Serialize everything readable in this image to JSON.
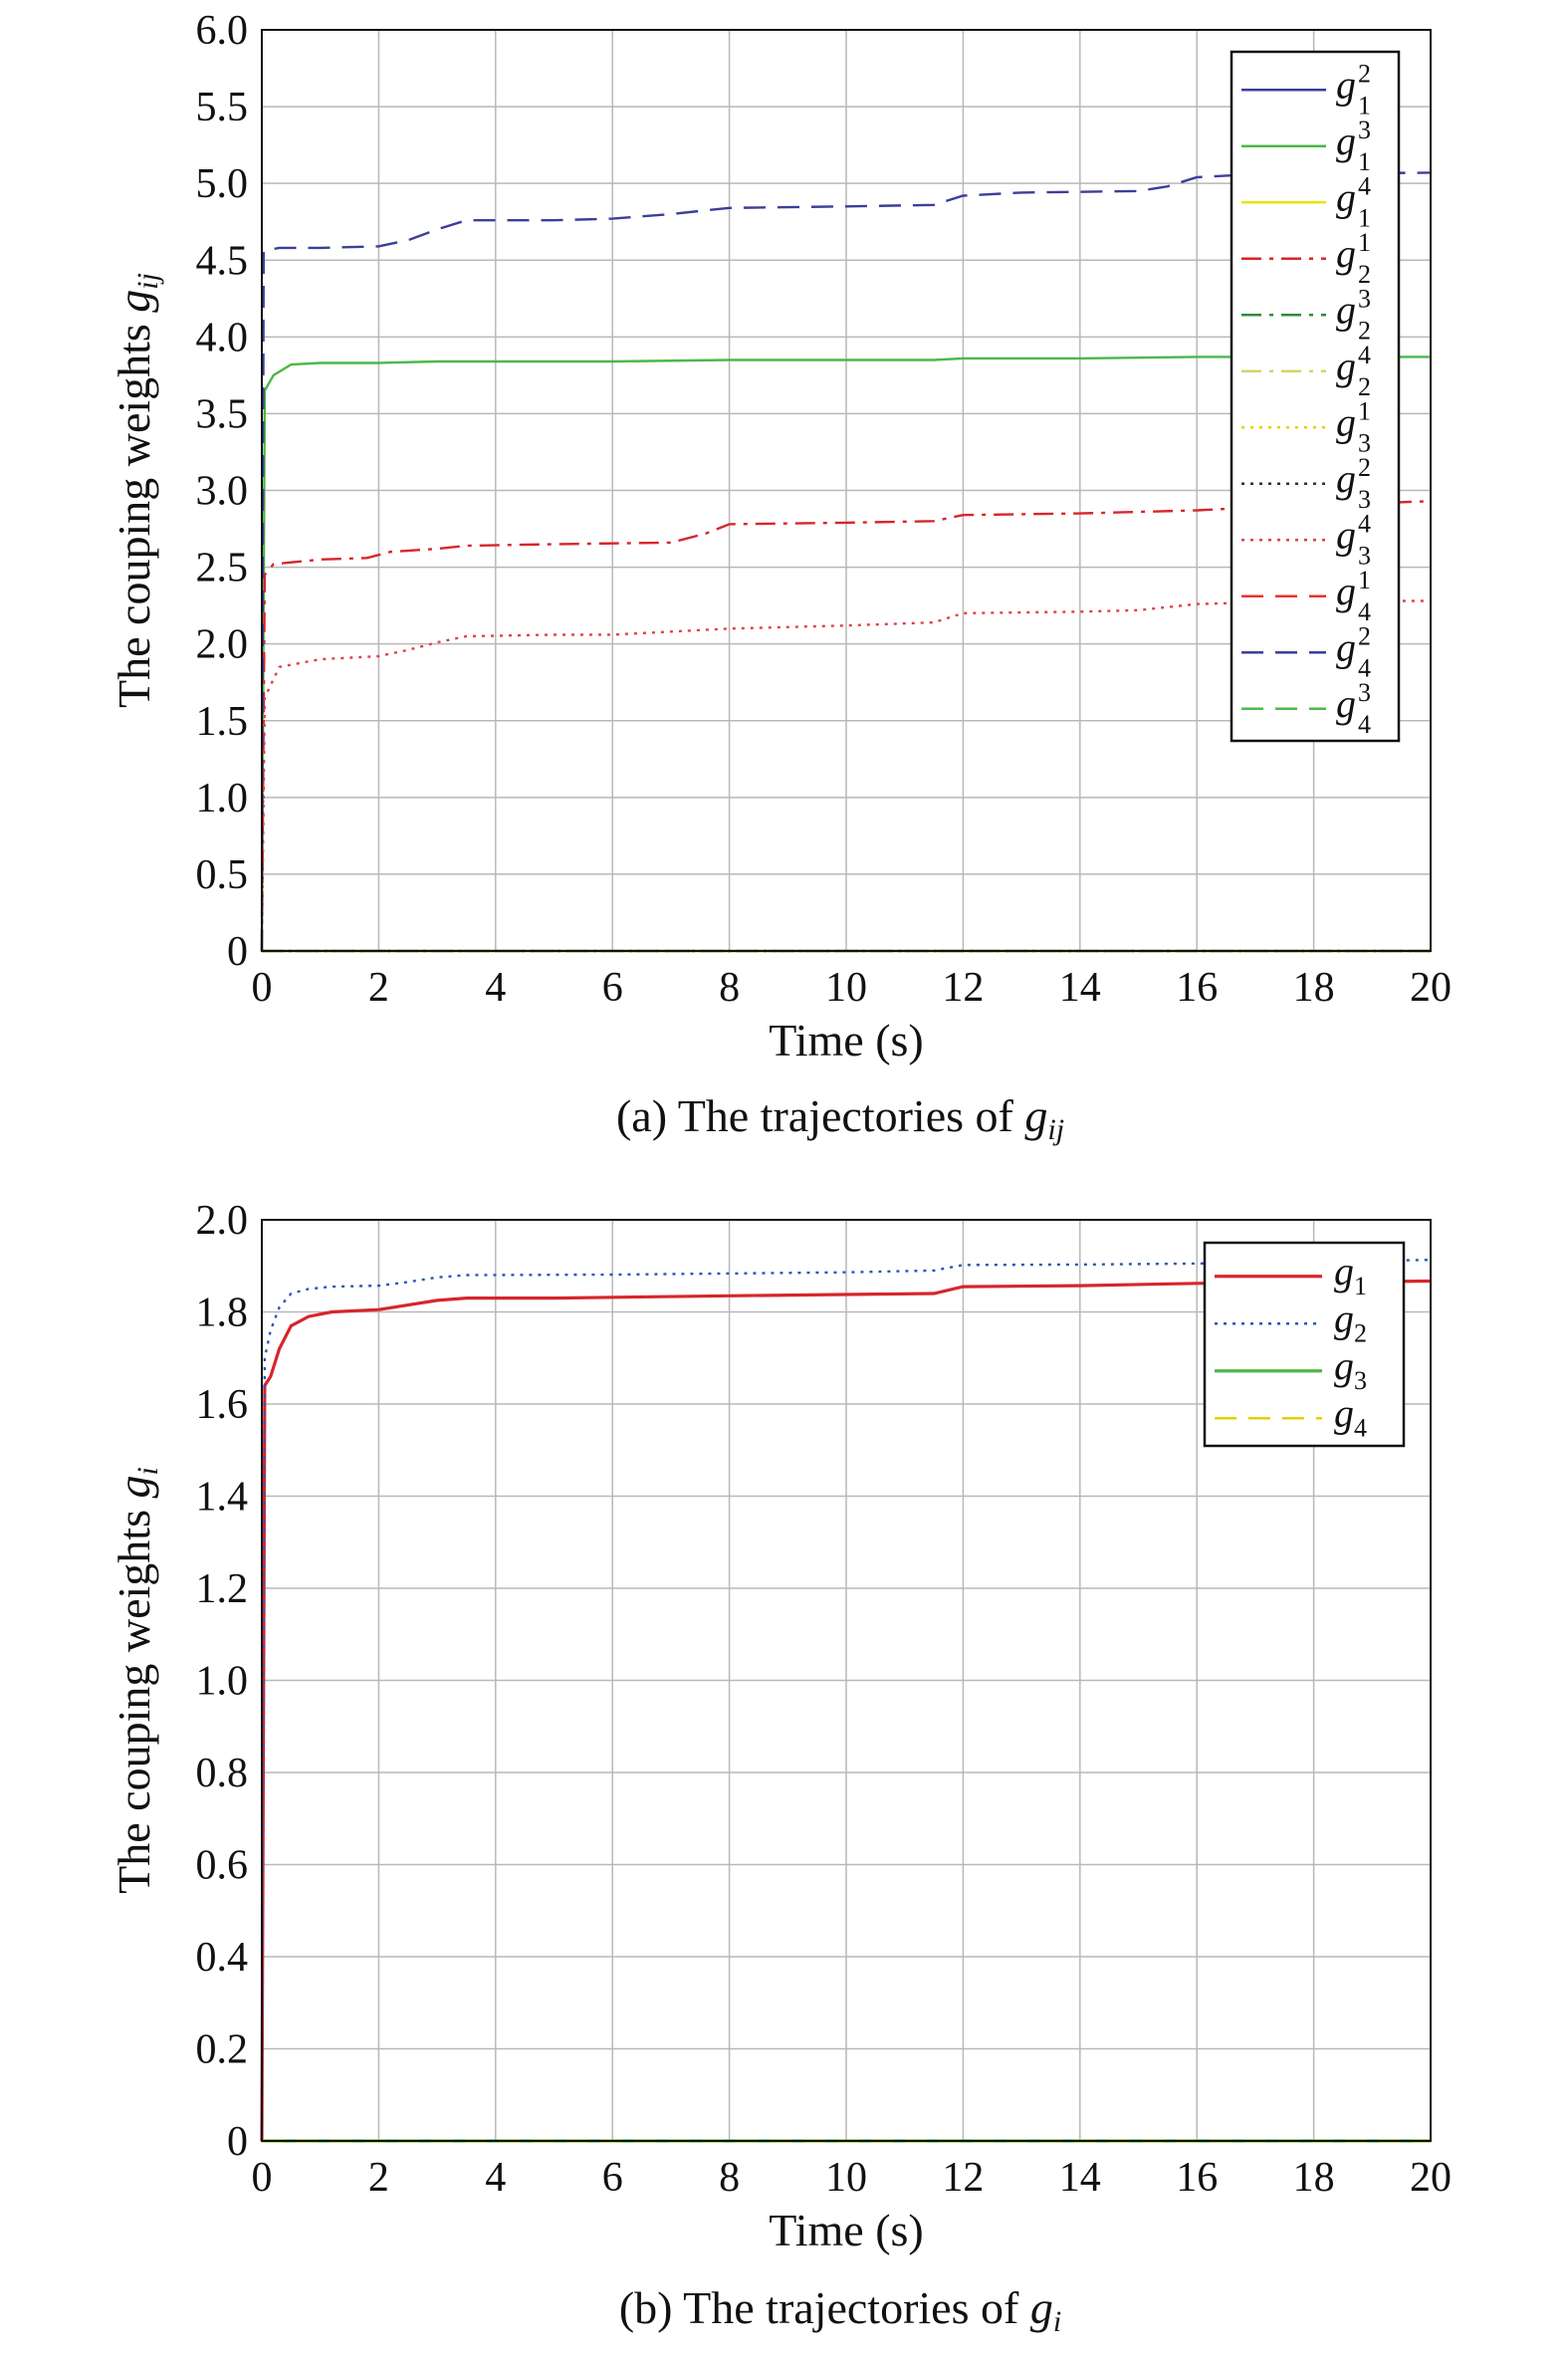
{
  "chart_data": [
    {
      "type": "line",
      "panel": "a",
      "caption_prefix": "(a) The trajectories of ",
      "caption_symbol": "g",
      "caption_subscript": "ij",
      "xlabel": "Time (s)",
      "ylabel_prefix": "The couping weights ",
      "ylabel_symbol": "g",
      "ylabel_subscript": "ij",
      "xlim": [
        0,
        20
      ],
      "ylim": [
        0,
        6
      ],
      "xticks": [
        "0",
        "2",
        "4",
        "6",
        "8",
        "10",
        "12",
        "14",
        "16",
        "18",
        "20"
      ],
      "yticks": [
        "0",
        "0.5",
        "1.0",
        "1.5",
        "2.0",
        "2.5",
        "3.0",
        "3.5",
        "4.0",
        "4.5",
        "5.0",
        "5.5",
        "6.0"
      ],
      "grid": true,
      "legend_position": "top-right",
      "series": [
        {
          "name": "g",
          "sub": "1",
          "sup": "2",
          "color": "#3b3f9a",
          "dash": "solid",
          "x": [
            0,
            20
          ],
          "y": [
            0,
            0
          ]
        },
        {
          "name": "g",
          "sub": "1",
          "sup": "3",
          "color": "#4cb848",
          "dash": "solid",
          "x": [
            0,
            0.05,
            0.2,
            0.5,
            1,
            2,
            3,
            4,
            6,
            8,
            10,
            11.5,
            12,
            14,
            16,
            20
          ],
          "y": [
            0,
            3.65,
            3.75,
            3.82,
            3.83,
            3.83,
            3.84,
            3.84,
            3.84,
            3.85,
            3.85,
            3.85,
            3.86,
            3.86,
            3.87,
            3.87
          ]
        },
        {
          "name": "g",
          "sub": "1",
          "sup": "4",
          "color": "#e6e600",
          "dash": "solid",
          "x": [
            0,
            20
          ],
          "y": [
            0,
            0
          ]
        },
        {
          "name": "g",
          "sub": "2",
          "sup": "1",
          "color": "#d7262b",
          "dash": "dashdot",
          "x": [
            0,
            0.05,
            0.2,
            1,
            1.8,
            2.2,
            3,
            3.5,
            5,
            7,
            7.6,
            8,
            10,
            11.5,
            12,
            14,
            16,
            17,
            20
          ],
          "y": [
            0,
            2.45,
            2.52,
            2.55,
            2.56,
            2.6,
            2.62,
            2.64,
            2.65,
            2.66,
            2.72,
            2.78,
            2.79,
            2.8,
            2.84,
            2.85,
            2.87,
            2.89,
            2.93
          ]
        },
        {
          "name": "g",
          "sub": "2",
          "sup": "3",
          "color": "#2e8b3a",
          "dash": "dashdot",
          "x": [
            0,
            20
          ],
          "y": [
            0,
            0
          ]
        },
        {
          "name": "g",
          "sub": "2",
          "sup": "4",
          "color": "#d4d46a",
          "dash": "dashdot",
          "x": [
            0,
            20
          ],
          "y": [
            0,
            0
          ]
        },
        {
          "name": "g",
          "sub": "3",
          "sup": "1",
          "color": "#e6d000",
          "dash": "dotted",
          "x": [
            0,
            20
          ],
          "y": [
            0,
            0
          ]
        },
        {
          "name": "g",
          "sub": "3",
          "sup": "2",
          "color": "#333333",
          "dash": "dotted",
          "x": [
            0,
            20
          ],
          "y": [
            0,
            0
          ]
        },
        {
          "name": "g",
          "sub": "3",
          "sup": "4",
          "color": "#e0404a",
          "dash": "dotted",
          "x": [
            0,
            0.05,
            0.3,
            1,
            2,
            2.5,
            3,
            3.5,
            5,
            6,
            7,
            8,
            10,
            11.5,
            12,
            14,
            15,
            16,
            18,
            20
          ],
          "y": [
            0,
            1.65,
            1.85,
            1.9,
            1.92,
            1.96,
            2.01,
            2.05,
            2.06,
            2.06,
            2.08,
            2.1,
            2.12,
            2.14,
            2.2,
            2.21,
            2.22,
            2.26,
            2.28,
            2.28
          ]
        },
        {
          "name": "g",
          "sub": "4",
          "sup": "1",
          "color": "#e8332e",
          "dash": "dashed",
          "x": [
            0,
            20
          ],
          "y": [
            0,
            0
          ]
        },
        {
          "name": "g",
          "sub": "4",
          "sup": "2",
          "color": "#3b3f9a",
          "dash": "dashed",
          "x": [
            0,
            0.03,
            0.3,
            1,
            2,
            2.5,
            3,
            3.5,
            5,
            6,
            7,
            8,
            10,
            11.5,
            12,
            13,
            15,
            15.5,
            16,
            17,
            20
          ],
          "y": [
            0,
            4.56,
            4.58,
            4.58,
            4.59,
            4.63,
            4.7,
            4.76,
            4.76,
            4.77,
            4.8,
            4.84,
            4.85,
            4.86,
            4.92,
            4.94,
            4.95,
            4.98,
            5.04,
            5.06,
            5.07
          ]
        },
        {
          "name": "g",
          "sub": "4",
          "sup": "3",
          "color": "#4cb848",
          "dash": "dashed",
          "x": [
            0,
            20
          ],
          "y": [
            0,
            0
          ]
        }
      ]
    },
    {
      "type": "line",
      "panel": "b",
      "caption_prefix": "(b) The trajectories of ",
      "caption_symbol": "g",
      "caption_subscript": "i",
      "xlabel": "Time (s)",
      "ylabel_prefix": "The couping weights ",
      "ylabel_symbol": "g",
      "ylabel_subscript": "i",
      "xlim": [
        0,
        20
      ],
      "ylim": [
        0,
        2
      ],
      "xticks": [
        "0",
        "2",
        "4",
        "6",
        "8",
        "10",
        "12",
        "14",
        "16",
        "18",
        "20"
      ],
      "yticks": [
        "0",
        "0.2",
        "0.4",
        "0.6",
        "0.8",
        "1.0",
        "1.2",
        "1.4",
        "1.6",
        "1.8",
        "2.0"
      ],
      "grid": true,
      "legend_position": "top-right",
      "series": [
        {
          "name": "g",
          "sub": "1",
          "sup": "",
          "color": "#d7262b",
          "dash": "solid",
          "x": [
            0,
            0.05,
            0.15,
            0.3,
            0.5,
            0.8,
            1.2,
            2,
            2.5,
            3,
            3.5,
            5,
            8,
            11.5,
            12,
            14,
            16,
            20
          ],
          "y": [
            0,
            1.64,
            1.66,
            1.72,
            1.77,
            1.79,
            1.8,
            1.805,
            1.815,
            1.825,
            1.83,
            1.83,
            1.835,
            1.84,
            1.855,
            1.857,
            1.862,
            1.867
          ]
        },
        {
          "name": "g",
          "sub": "2",
          "sup": "",
          "color": "#2b57b5",
          "dash": "dotted",
          "x": [
            0,
            0.05,
            0.15,
            0.3,
            0.5,
            0.8,
            1.2,
            2,
            2.5,
            3,
            3.5,
            6,
            10,
            11.5,
            12,
            14,
            16,
            20
          ],
          "y": [
            0,
            1.7,
            1.76,
            1.81,
            1.84,
            1.85,
            1.855,
            1.857,
            1.865,
            1.875,
            1.88,
            1.881,
            1.886,
            1.89,
            1.902,
            1.903,
            1.905,
            1.913
          ]
        },
        {
          "name": "g",
          "sub": "3",
          "sup": "",
          "color": "#4cb848",
          "dash": "solid",
          "x": [
            0,
            20
          ],
          "y": [
            0,
            0
          ]
        },
        {
          "name": "g",
          "sub": "4",
          "sup": "",
          "color": "#e6d000",
          "dash": "dashed",
          "x": [
            0,
            20
          ],
          "y": [
            0,
            0
          ]
        }
      ]
    }
  ]
}
